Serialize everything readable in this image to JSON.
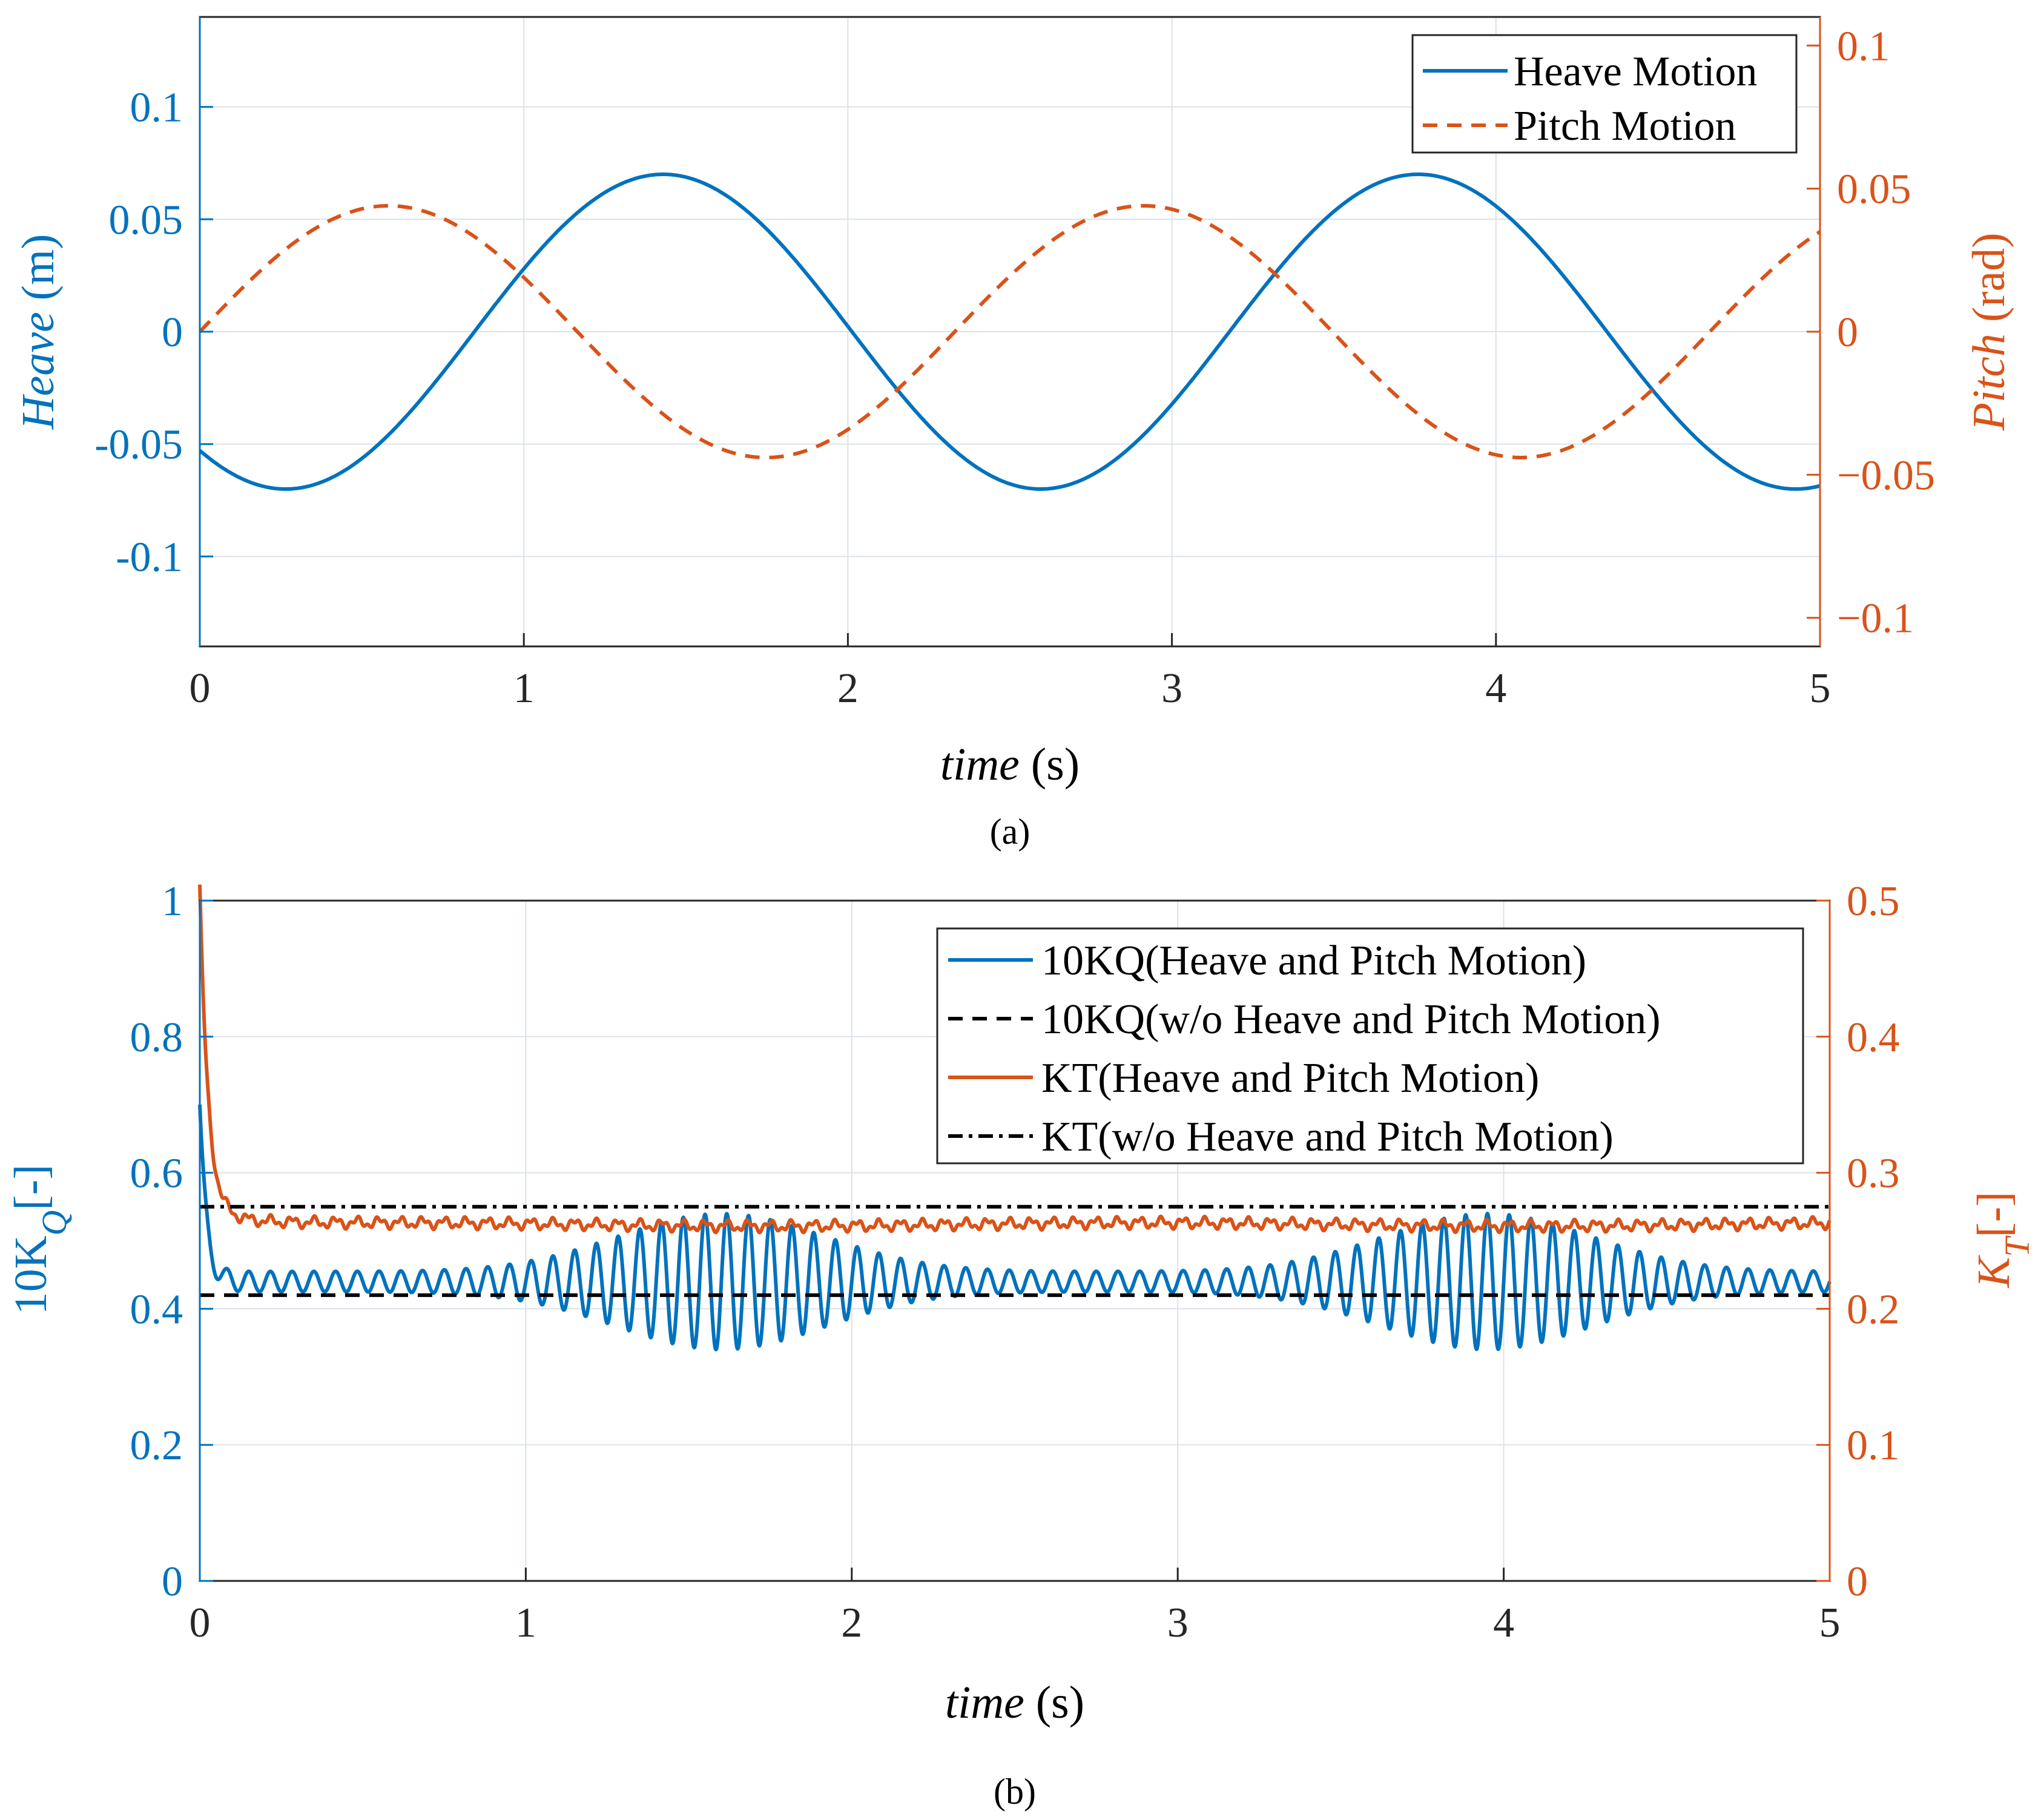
{
  "colors": {
    "blue": "#0072BD",
    "orange": "#D95319",
    "black": "#000000",
    "grid": "#DCE2EA"
  },
  "chart_data": [
    {
      "panel": "a",
      "caption": "(a)",
      "type": "line",
      "xlabel_italic": "time",
      "xlabel_unit": " (s)",
      "xlim": [
        0,
        5
      ],
      "xticks": [
        0,
        1,
        2,
        3,
        4,
        5
      ],
      "xtick_labels": [
        "0",
        "1",
        "2",
        "3",
        "4",
        "5"
      ],
      "y_left": {
        "label_italic": "Heave",
        "label_unit": " (m)",
        "lim": [
          -0.14,
          0.14
        ],
        "ticks": [
          -0.1,
          -0.05,
          0,
          0.05,
          0.1
        ],
        "tick_labels": [
          "-0.1",
          "-0.05",
          "0",
          "0.05",
          "0.1"
        ]
      },
      "y_right": {
        "label_italic": "Pitch",
        "label_unit": " (rad)",
        "lim": [
          -0.11,
          0.11
        ],
        "ticks": [
          -0.1,
          -0.05,
          0,
          0.05,
          0.1
        ],
        "tick_labels": [
          "−0.1",
          "−0.05",
          "0",
          "0.05",
          "0.1"
        ]
      },
      "grid": true,
      "legend_position": "top-right",
      "series": [
        {
          "name": "Heave Motion",
          "axis": "left",
          "style": "solid",
          "color": "#0072BD",
          "model": "sine",
          "amplitude": 0.07,
          "period": 2.33,
          "phase_time": 0.8475
        },
        {
          "name": "Pitch Motion",
          "axis": "right",
          "style": "dashed",
          "color": "#D95319",
          "model": "sine",
          "amplitude": 0.044,
          "period": 2.33,
          "phase_time": 0
        }
      ]
    },
    {
      "panel": "b",
      "caption": "(b)",
      "type": "line",
      "xlabel_italic": "time",
      "xlabel_unit": " (s)",
      "xlim": [
        0,
        5
      ],
      "xticks": [
        0,
        1,
        2,
        3,
        4,
        5
      ],
      "xtick_labels": [
        "0",
        "1",
        "2",
        "3",
        "4",
        "5"
      ],
      "y_left": {
        "label_main": "10K",
        "label_sub": "Q",
        "label_tail": "[-]",
        "lim": [
          0,
          1
        ],
        "ticks": [
          0,
          0.2,
          0.4,
          0.6,
          0.8,
          1
        ],
        "tick_labels": [
          "0",
          "0.2",
          "0.4",
          "0.6",
          "0.8",
          "1"
        ]
      },
      "y_right": {
        "label_main": "K",
        "label_sub": "T",
        "label_tail": "[-]",
        "lim": [
          0,
          0.5
        ],
        "ticks": [
          0,
          0.1,
          0.2,
          0.3,
          0.4,
          0.5
        ],
        "tick_labels": [
          "0",
          "0.1",
          "0.2",
          "0.3",
          "0.4",
          "0.5"
        ]
      },
      "grid": true,
      "legend_position": "top-right",
      "series": [
        {
          "name": "10KQ(Heave and Pitch Motion)",
          "axis": "left",
          "style": "solid",
          "color": "#0072BD",
          "model": "oscillating",
          "mean": 0.44,
          "oscillation_freq_hz": 15,
          "envelope_peaks_s": [
            1.6,
            3.95
          ],
          "envelope_width_s": 0.45,
          "base_amplitude": 0.015,
          "peak_amplitude": 0.1,
          "start_value": 0.7
        },
        {
          "name": "10KQ(w/o Heave and Pitch Motion)",
          "axis": "left",
          "style": "dashed",
          "color": "#000000",
          "model": "constant",
          "value": 0.42
        },
        {
          "name": "KT(Heave and Pitch Motion)",
          "axis": "right",
          "style": "solid",
          "color": "#D95319",
          "model": "decay_noise",
          "start_value": 0.5,
          "steady_value": 0.262,
          "noise": 0.003
        },
        {
          "name": "KT(w/o Heave and Pitch Motion)",
          "axis": "right",
          "style": "dashdot",
          "color": "#000000",
          "model": "constant",
          "value": 0.275
        }
      ]
    }
  ]
}
